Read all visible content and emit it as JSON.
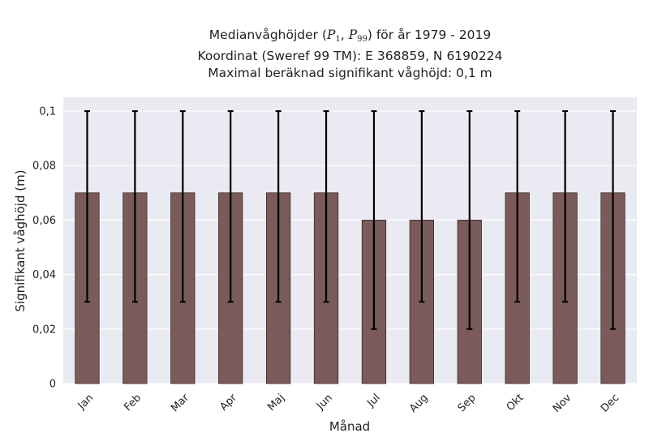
{
  "chart_data": {
    "type": "bar",
    "title_lines": [
      {
        "pre": "Medianvåghöjder (",
        "p1": "P",
        "p1_sub": "1",
        "sep": ", ",
        "p2": "P",
        "p2_sub": "99",
        "post": ") för år 1979 - 2019"
      },
      "Koordinat (Sweref 99 TM): E 368859, N 6190224",
      "Maximal beräknad signifikant våghöjd: 0,1 m"
    ],
    "xlabel": "Månad",
    "ylabel": "Signifikant våghöjd (m)",
    "categories": [
      "Jan",
      "Feb",
      "Mar",
      "Apr",
      "Maj",
      "Jun",
      "Jul",
      "Aug",
      "Sep",
      "Okt",
      "Nov",
      "Dec"
    ],
    "values": [
      0.07,
      0.07,
      0.07,
      0.07,
      0.07,
      0.07,
      0.06,
      0.06,
      0.06,
      0.07,
      0.07,
      0.07
    ],
    "err_low": [
      0.03,
      0.03,
      0.03,
      0.03,
      0.03,
      0.03,
      0.02,
      0.03,
      0.02,
      0.03,
      0.03,
      0.02
    ],
    "err_high": [
      0.1,
      0.1,
      0.1,
      0.1,
      0.1,
      0.1,
      0.1,
      0.1,
      0.1,
      0.1,
      0.1,
      0.1
    ],
    "yticks": [
      0,
      0.02,
      0.04,
      0.06,
      0.08,
      0.1
    ],
    "ytick_labels": [
      "0",
      "0,02",
      "0,04",
      "0,06",
      "0,08",
      "0,1"
    ],
    "ylim": [
      0,
      0.1
    ],
    "grid": true,
    "legend": "none",
    "colors": {
      "bar": "#7b5a5a",
      "bar_edge": "#3a2a2a",
      "background": "#eaeaf2",
      "grid": "#ffffff",
      "error": "#000000"
    }
  }
}
